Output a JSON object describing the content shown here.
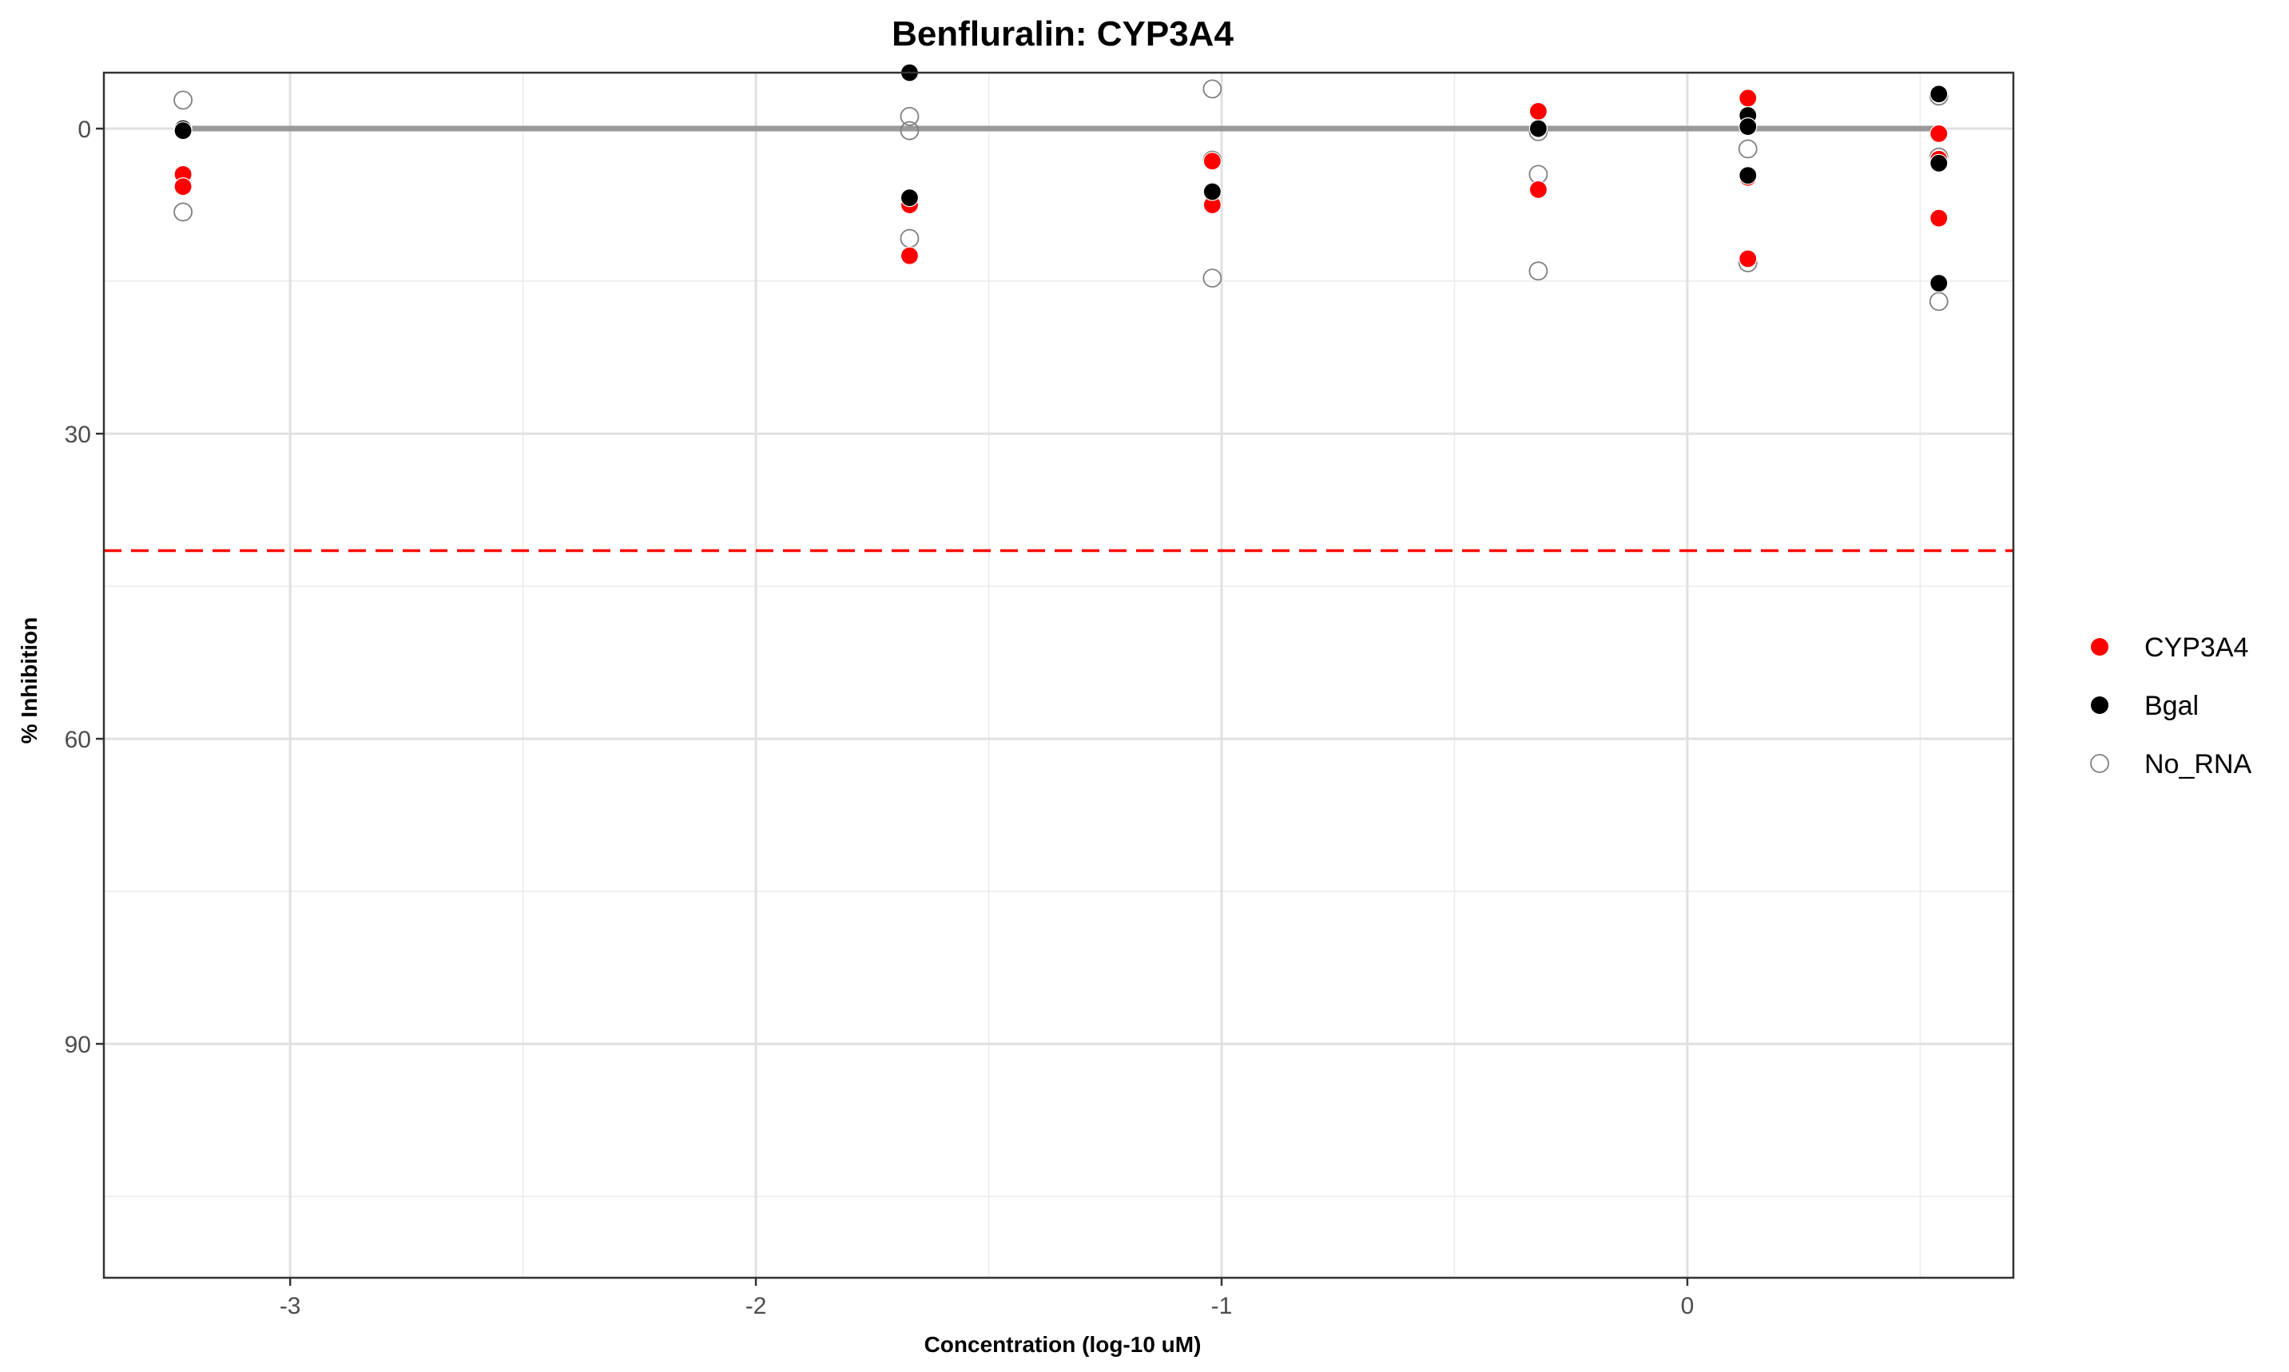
{
  "chart_data": {
    "type": "scatter",
    "title": "Benfluralin: CYP3A4",
    "xlabel": "Concentration (log-10 uM)",
    "ylabel": "% Inhibition",
    "xlim": [
      -3.4,
      0.7
    ],
    "ylim": [
      -5.5,
      113
    ],
    "y_reversed": true,
    "x_ticks": [
      -3,
      -2,
      -1,
      0
    ],
    "x_tick_labels": [
      "-3",
      "-2",
      "-1",
      "0"
    ],
    "y_ticks": [
      0,
      30,
      60,
      90
    ],
    "y_tick_labels": [
      "0",
      "30",
      "60",
      "90"
    ],
    "grid": true,
    "legend_position": "right",
    "reference_lines": [
      {
        "kind": "horizontal",
        "y": 41.5,
        "style": "dashed",
        "color": "#ff0000"
      }
    ],
    "fit_line": {
      "x": [
        -3.23,
        0.54
      ],
      "y": [
        0,
        0
      ],
      "color": "#999999"
    },
    "series": [
      {
        "name": "CYP3A4",
        "color": "#ff0000",
        "marker": "filled",
        "points": [
          {
            "x": -3.23,
            "y": 4.5
          },
          {
            "x": -3.23,
            "y": 5.7
          },
          {
            "x": -1.67,
            "y": 7.5
          },
          {
            "x": -1.67,
            "y": 12.5
          },
          {
            "x": -1.02,
            "y": 3.2
          },
          {
            "x": -1.02,
            "y": 7.5
          },
          {
            "x": -0.32,
            "y": -1.7
          },
          {
            "x": -0.32,
            "y": 6.0
          },
          {
            "x": 0.13,
            "y": -3.0
          },
          {
            "x": 0.13,
            "y": 4.8
          },
          {
            "x": 0.13,
            "y": 12.8
          },
          {
            "x": 0.54,
            "y": 0.5
          },
          {
            "x": 0.54,
            "y": 8.8
          },
          {
            "x": 0.54,
            "y": 3.0
          }
        ]
      },
      {
        "name": "Bgal",
        "color": "#000000",
        "marker": "filled",
        "points": [
          {
            "x": -3.23,
            "y": 0.0
          },
          {
            "x": -3.23,
            "y": 0.2
          },
          {
            "x": -1.67,
            "y": -5.5
          },
          {
            "x": -1.67,
            "y": 6.8
          },
          {
            "x": -1.02,
            "y": 6.2
          },
          {
            "x": -0.32,
            "y": 0.0
          },
          {
            "x": 0.13,
            "y": -1.3
          },
          {
            "x": 0.13,
            "y": -0.2
          },
          {
            "x": 0.13,
            "y": 4.6
          },
          {
            "x": 0.54,
            "y": -3.4
          },
          {
            "x": 0.54,
            "y": 3.4
          },
          {
            "x": 0.54,
            "y": 15.2
          }
        ]
      },
      {
        "name": "No_RNA",
        "color": "#808080",
        "marker": "open",
        "points": [
          {
            "x": -3.23,
            "y": -2.8
          },
          {
            "x": -3.23,
            "y": 8.2
          },
          {
            "x": -1.67,
            "y": -1.2
          },
          {
            "x": -1.67,
            "y": 0.2
          },
          {
            "x": -1.67,
            "y": 10.8
          },
          {
            "x": -1.02,
            "y": -3.9
          },
          {
            "x": -1.02,
            "y": 3.1
          },
          {
            "x": -1.02,
            "y": 14.7
          },
          {
            "x": -0.32,
            "y": 0.3
          },
          {
            "x": -0.32,
            "y": 4.5
          },
          {
            "x": -0.32,
            "y": 14.0
          },
          {
            "x": 0.13,
            "y": 2.0
          },
          {
            "x": 0.13,
            "y": 13.2
          },
          {
            "x": 0.54,
            "y": -3.2
          },
          {
            "x": 0.54,
            "y": 2.8
          },
          {
            "x": 0.54,
            "y": 17.0
          }
        ]
      }
    ]
  }
}
